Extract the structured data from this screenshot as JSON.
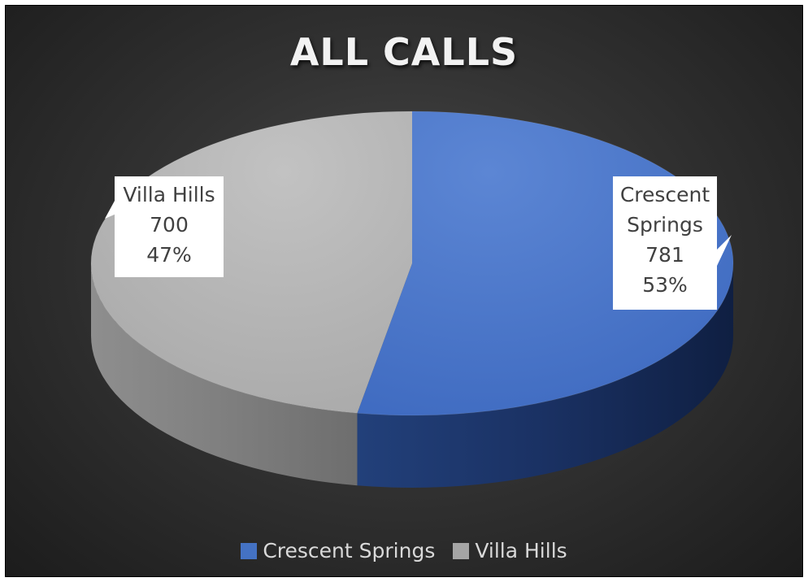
{
  "chart_data": {
    "type": "pie",
    "title": "ALL CALLS",
    "categories": [
      "Crescent Springs",
      "Villa Hills"
    ],
    "values": [
      781,
      700
    ],
    "percent_labels": [
      "53%",
      "47%"
    ],
    "label_lines": [
      [
        "Crescent",
        "Springs"
      ],
      [
        "Villa Hills"
      ]
    ],
    "value_labels": [
      "781",
      "700"
    ],
    "colors": [
      "#4472c4",
      "#a5a5a5"
    ],
    "legend_placement": "bottom",
    "style": "3d"
  }
}
